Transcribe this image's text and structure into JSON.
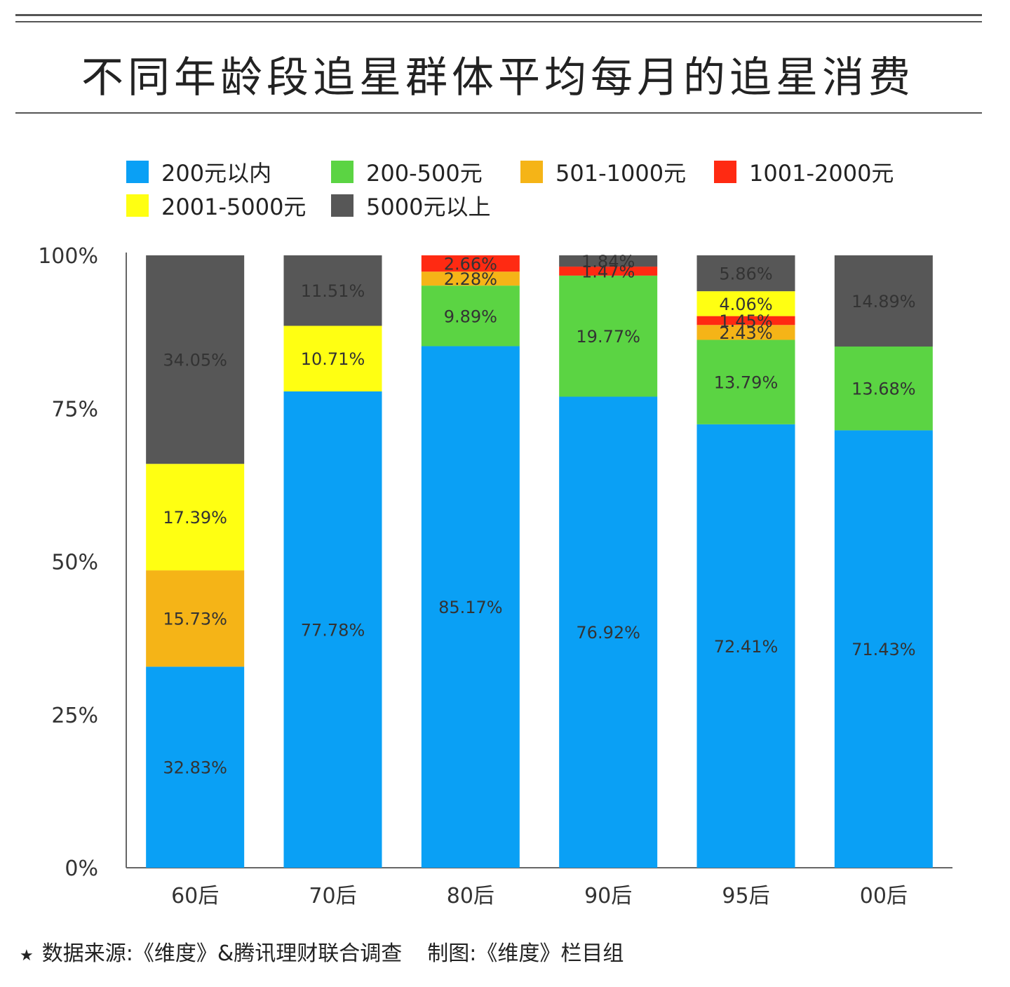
{
  "title": "不同年龄段追星群体平均每月的追星消费",
  "source": {
    "star": "★",
    "data_source": "数据来源:《维度》&腾讯理财联合调查",
    "made_by": "制图:《维度》栏目组"
  },
  "chart_data": {
    "type": "bar",
    "stacked": true,
    "title": "不同年龄段追星群体平均每月的追星消费",
    "categories": [
      "60后",
      "70后",
      "80后",
      "90后",
      "95后",
      "00后"
    ],
    "y_ticks": [
      "0%",
      "25%",
      "50%",
      "75%",
      "100%"
    ],
    "ylim": [
      0,
      100
    ],
    "legend_position": "top",
    "series": [
      {
        "name": "200元以内",
        "color": "#0aa0f5",
        "values": [
          32.83,
          77.78,
          85.17,
          76.92,
          72.41,
          71.43
        ],
        "labels": [
          "32.83%",
          "77.78%",
          "85.17%",
          "76.92%",
          "72.41%",
          "71.43%"
        ]
      },
      {
        "name": "200-500元",
        "color": "#5bd443",
        "values": [
          0,
          0,
          9.89,
          19.77,
          13.79,
          13.68
        ],
        "labels": [
          "",
          "",
          "9.89%",
          "19.77%",
          "13.79%",
          "13.68%"
        ]
      },
      {
        "name": "501-1000元",
        "color": "#f5b417",
        "values": [
          15.73,
          0,
          2.28,
          0,
          2.43,
          0
        ],
        "labels": [
          "15.73%",
          "",
          "2.28%",
          "",
          "2.43%",
          ""
        ]
      },
      {
        "name": "1001-2000元",
        "color": "#ff2a12",
        "values": [
          0,
          0,
          2.66,
          1.47,
          1.45,
          0
        ],
        "labels": [
          "",
          "",
          "2.66%",
          "1.47%",
          "1.45%",
          ""
        ]
      },
      {
        "name": "2001-5000元",
        "color": "#ffff12",
        "values": [
          17.39,
          10.71,
          0,
          0,
          4.06,
          0
        ],
        "labels": [
          "17.39%",
          "10.71%",
          "",
          "",
          "4.06%",
          ""
        ]
      },
      {
        "name": "5000元以上",
        "color": "#575757",
        "values": [
          34.05,
          11.51,
          0,
          1.84,
          5.86,
          14.89
        ],
        "labels": [
          "34.05%",
          "11.51%",
          "",
          "1.84%",
          "5.86%",
          "14.89%"
        ]
      }
    ]
  }
}
